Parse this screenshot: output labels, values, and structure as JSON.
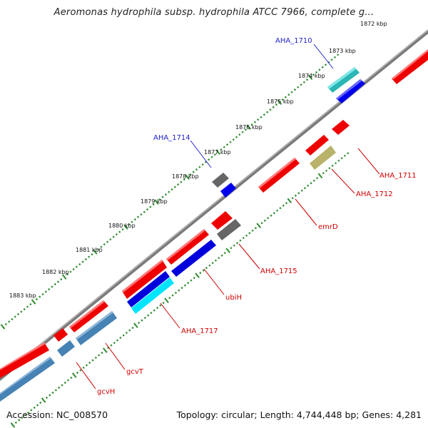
{
  "title": "Aeromonas hydrophila subsp. hydrophila ATCC 7966, complete g...",
  "footer": {
    "accession": "Accession: NC_008570",
    "topology": "Topology: circular; Length: 4,744,448 bp; Genes: 4,281"
  },
  "colors": {
    "backbone": "#888888",
    "tick": "#2e8b2e",
    "forward_gene": "#ff0000",
    "reverse_gene": "#ff0000",
    "cds_teal": "#33cccc",
    "cds_blue": "#0000ff",
    "cds_steel": "#4682b4",
    "cds_gray": "#666666",
    "cds_khaki": "#bdb76b",
    "cds_cyan": "#00e5ff",
    "label_red": "#d40000",
    "label_blue": "#0000cc"
  },
  "tick_labels": [
    "1872 kbp",
    "1873 kbp",
    "1874 kbp",
    "1875 kbp",
    "1876 kbp",
    "1877 kbp",
    "1878 kbp",
    "1879 kbp",
    "1880 kbp",
    "1881 kbp",
    "1882 kbp",
    "1883 kbp"
  ],
  "gene_labels": {
    "aha_1710": "AHA_1710",
    "aha_1714": "AHA_1714",
    "aha_1711": "AHA_1711",
    "aha_1712": "AHA_1712",
    "emrd": "emrD",
    "aha_1715": "AHA_1715",
    "ubih": "ubiH",
    "aha_1717": "AHA_1717",
    "gcvt": "gcvT",
    "gcvh": "gcvH"
  }
}
